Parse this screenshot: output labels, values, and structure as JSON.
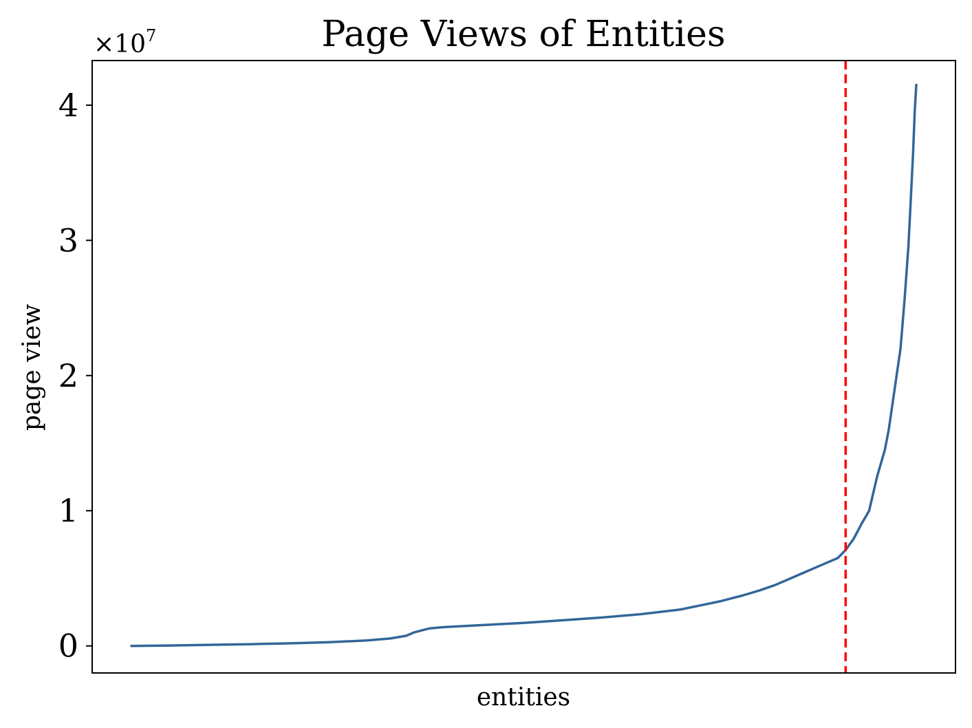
{
  "chart_data": {
    "type": "line",
    "title": "Page Views of Entities",
    "xlabel": "entities",
    "ylabel": "page view",
    "y_multiplier": {
      "base": "×10",
      "exponent": "7"
    },
    "yticks": [
      0,
      1,
      2,
      3,
      4
    ],
    "ylim": [
      -0.2,
      4.33
    ],
    "xlim": [
      -0.05,
      1.05
    ],
    "grid": false,
    "legend": "none",
    "x_tick_labels_shown": false,
    "series": [
      {
        "color": "#336699",
        "x": [
          0.0,
          0.05,
          0.1,
          0.15,
          0.2,
          0.25,
          0.3,
          0.33,
          0.35,
          0.36,
          0.38,
          0.4,
          0.45,
          0.5,
          0.55,
          0.6,
          0.65,
          0.7,
          0.75,
          0.78,
          0.8,
          0.82,
          0.84,
          0.86,
          0.88,
          0.9,
          0.91,
          0.92,
          0.93,
          0.94,
          0.95,
          0.96,
          0.965,
          0.97,
          0.975,
          0.98,
          0.985,
          0.99,
          0.993,
          0.996,
          0.998,
          1.0
        ],
        "values": [
          0.0,
          0.003,
          0.008,
          0.013,
          0.019,
          0.027,
          0.04,
          0.055,
          0.075,
          0.1,
          0.13,
          0.14,
          0.155,
          0.17,
          0.19,
          0.21,
          0.235,
          0.27,
          0.33,
          0.375,
          0.41,
          0.45,
          0.5,
          0.55,
          0.6,
          0.65,
          0.71,
          0.79,
          0.9,
          1.0,
          1.25,
          1.45,
          1.6,
          1.8,
          2.0,
          2.2,
          2.55,
          2.95,
          3.3,
          3.65,
          3.95,
          4.15
        ]
      }
    ],
    "reference_line": {
      "orientation": "vertical",
      "x": 0.91,
      "color": "#ff0000",
      "style": "dashed"
    }
  }
}
